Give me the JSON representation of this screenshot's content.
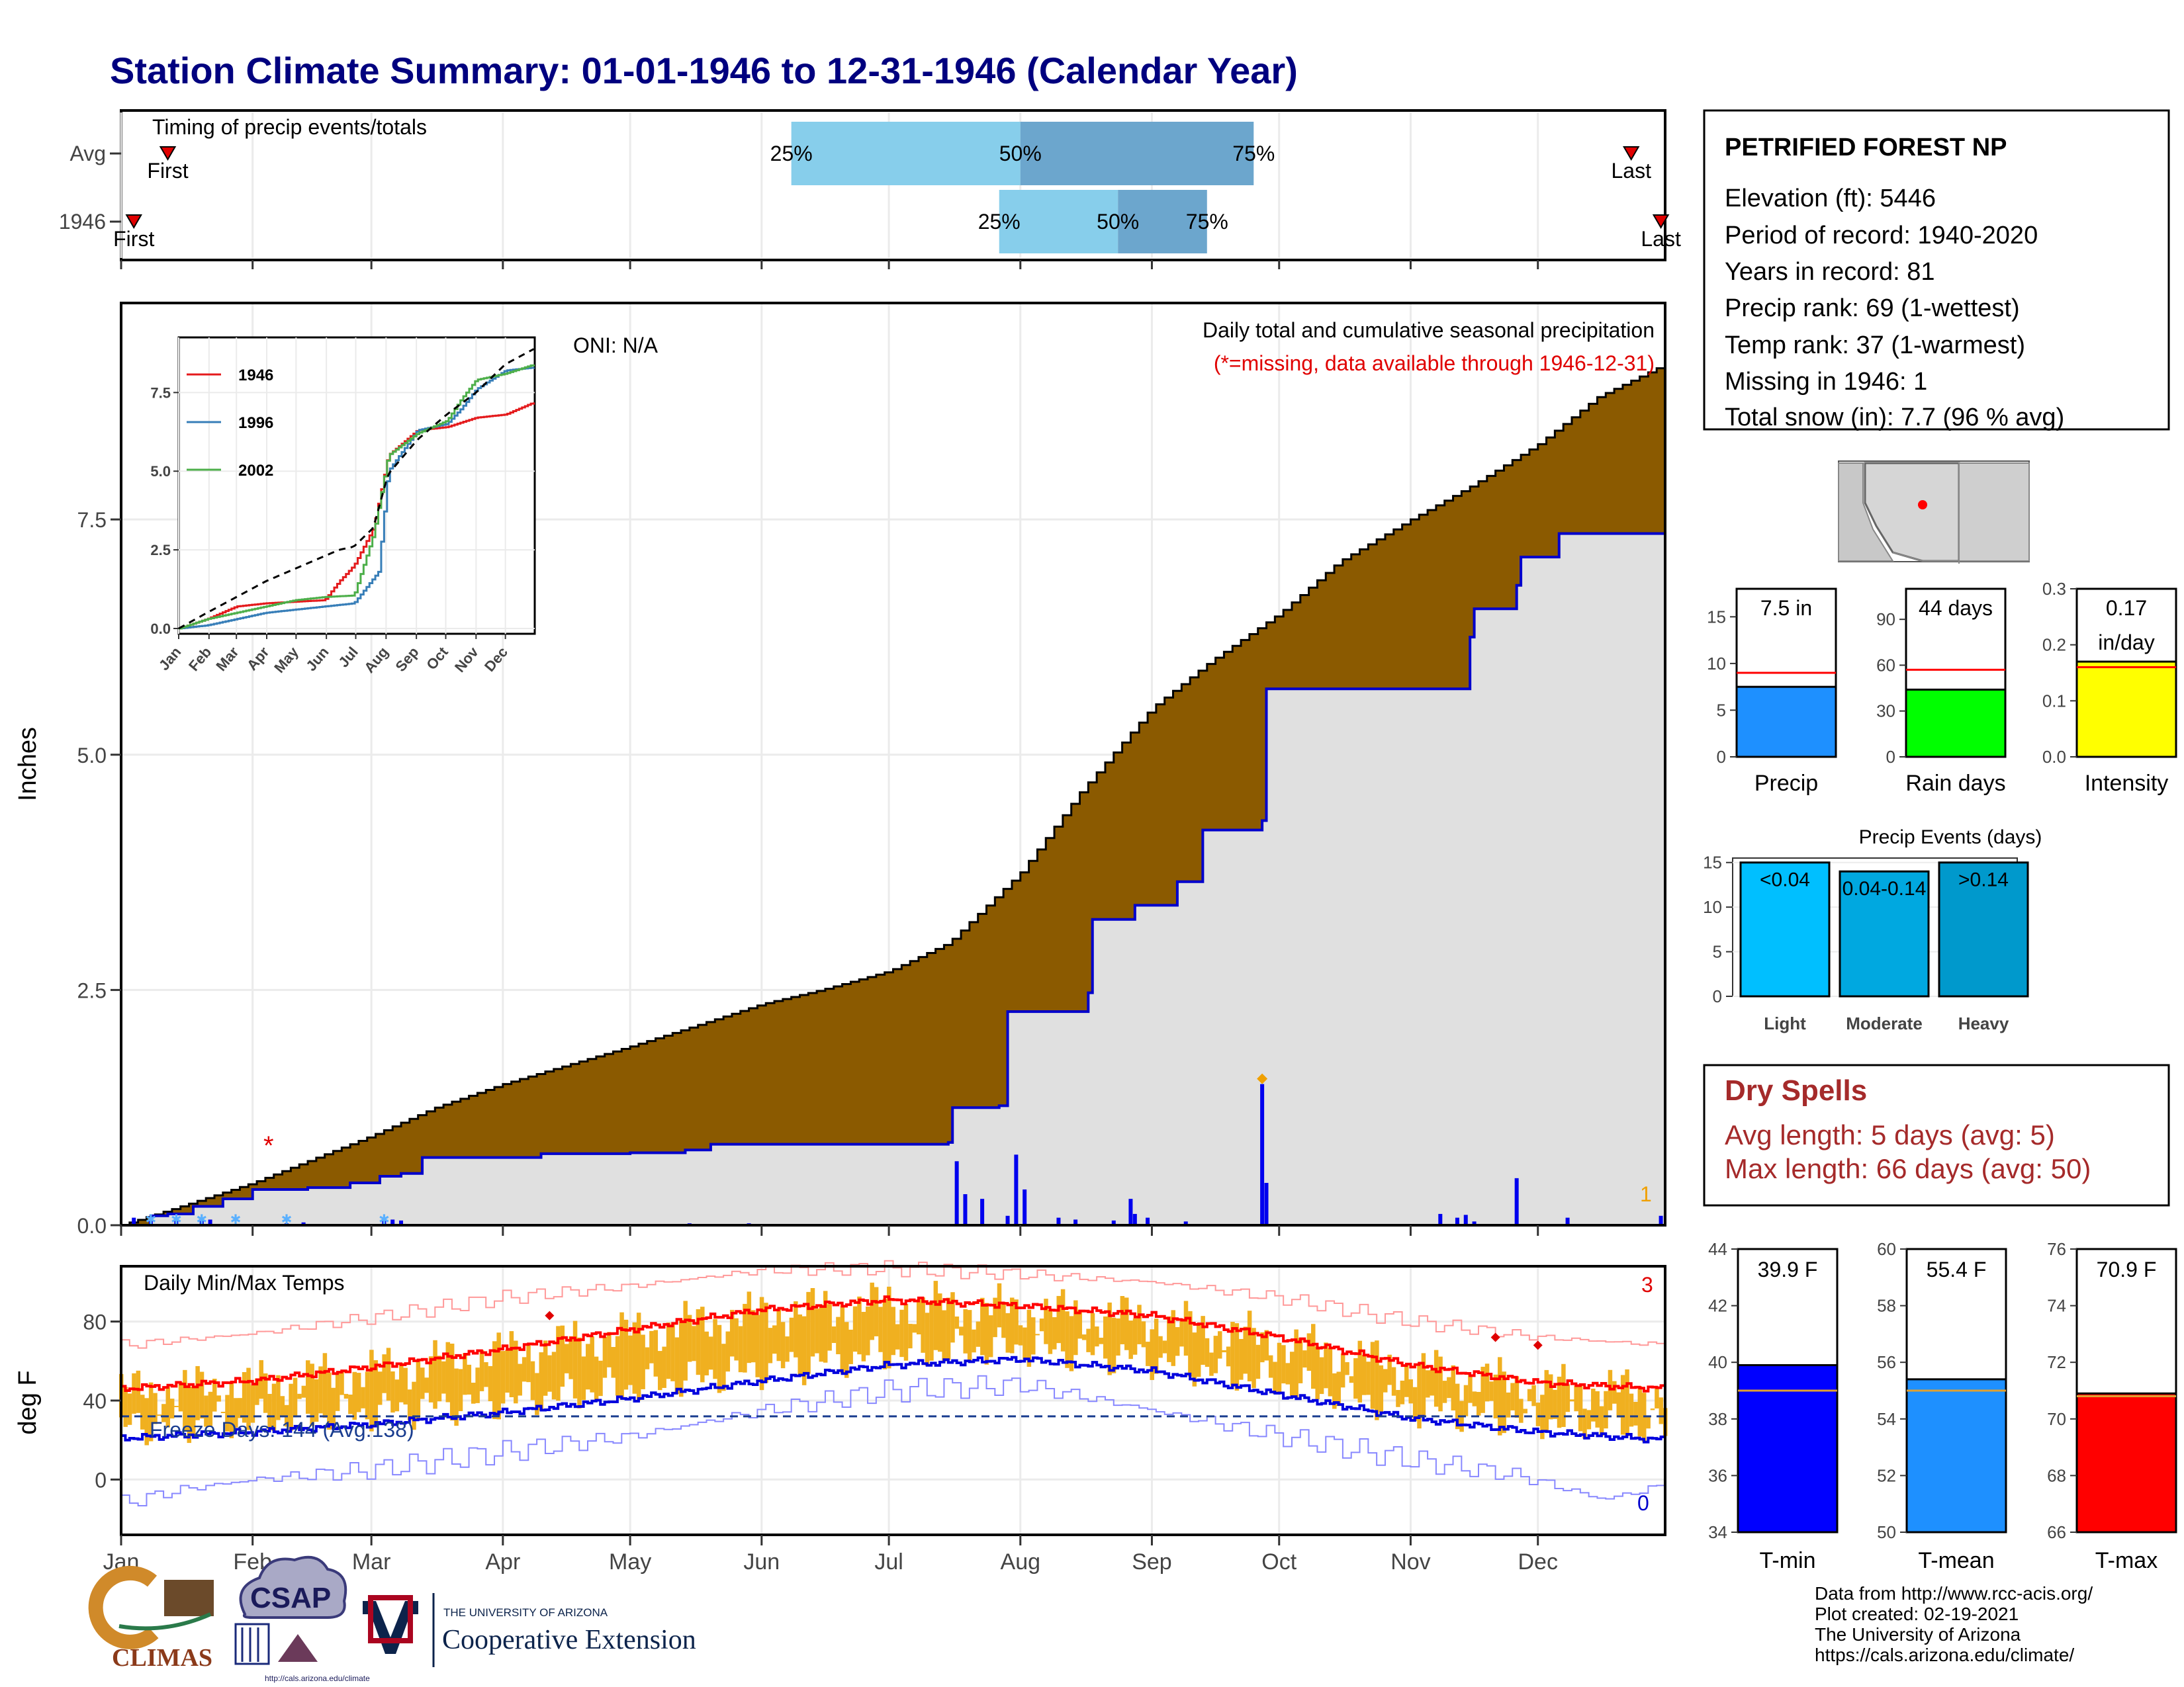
{
  "title": "Station Climate Summary: 01-01-1946 to 12-31-1946 (Calendar Year)",
  "timing_panel": {
    "label": "Timing of precip events/totals",
    "rows": [
      "Avg",
      "1946"
    ],
    "first_label": "First",
    "last_label": "Last",
    "avg": {
      "first_doy": 12,
      "p25_doy": 159,
      "p50_doy": 213,
      "p75_doy": 268,
      "last_doy": 357
    },
    "y1946": {
      "first_doy": 4,
      "p25_doy": 208,
      "p50_doy": 236,
      "p75_doy": 257,
      "last_doy": 364
    },
    "pct_labels": [
      "25%",
      "50%",
      "75%"
    ]
  },
  "station": {
    "name": "PETRIFIED FOREST NP",
    "lines": [
      "Elevation (ft): 5446",
      "Period of record: 1940-2020",
      "Years in record: 81",
      "Precip rank: 69 (1-wettest)",
      "Temp rank: 37 (1-warmest)",
      "Missing in 1946: 1",
      "Total snow (in): 7.7 (96 % avg)"
    ]
  },
  "precip_panel": {
    "ylabel": "Inches",
    "yticks": [
      "0.0",
      "2.5",
      "5.0",
      "7.5"
    ],
    "title_line1": "Daily total and cumulative seasonal precipitation",
    "title_line2": "(*=missing, data available through 1946-12-31)",
    "oni": "ONI: N/A",
    "missing_marker": "*",
    "count_label": "1",
    "colors": {
      "avg_fill": "#8b5a00",
      "year_fill": "#e0e0e0",
      "year_line": "#0000cc",
      "bars": "#0000ee",
      "missing": "#e00000"
    }
  },
  "inset": {
    "yticks": [
      "0.0",
      "2.5",
      "5.0",
      "7.5"
    ],
    "months": [
      "Jan",
      "Feb",
      "Mar",
      "Apr",
      "May",
      "Jun",
      "Jul",
      "Aug",
      "Sep",
      "Oct",
      "Nov",
      "Dec"
    ],
    "legend": [
      {
        "name": "1946",
        "color": "#e41a1c"
      },
      {
        "name": "1996",
        "color": "#377eb8"
      },
      {
        "name": "2002",
        "color": "#4daf4a"
      }
    ]
  },
  "temp_panel": {
    "ylabel": "deg F",
    "title": "Daily Min/Max Temps",
    "yticks": [
      "0",
      "40",
      "80"
    ],
    "freeze_label": "Freeze Days: 144 (Avg:138)",
    "record_high_count": "3",
    "record_low_count": "0",
    "colors": {
      "bars": "#f0b020",
      "avg_max": "#ff0000",
      "avg_min": "#0000dd",
      "rec": "#ff9999",
      "rec_low": "#8888ff"
    }
  },
  "x_months": [
    "Jan",
    "Feb",
    "Mar",
    "Apr",
    "May",
    "Jun",
    "Jul",
    "Aug",
    "Sep",
    "Oct",
    "Nov",
    "Dec"
  ],
  "mini_bars": [
    {
      "label": "Precip",
      "value_label": "7.5 in",
      "value": 7.5,
      "avg": 9.0,
      "yticks": [
        "0",
        "5",
        "10",
        "15"
      ],
      "ymax": 18,
      "color": "#1e90ff"
    },
    {
      "label": "Rain days",
      "value_label": "44 days",
      "value": 44,
      "avg": 57,
      "yticks": [
        "0",
        "30",
        "60",
        "90"
      ],
      "ymax": 110,
      "color": "#00ff00"
    },
    {
      "label": "Intensity",
      "value_label": "0.17\nin/day",
      "value": 0.17,
      "avg": 0.16,
      "yticks": [
        "0.0",
        "0.1",
        "0.2",
        "0.3"
      ],
      "ymax": 0.3,
      "color": "#ffff00"
    }
  ],
  "precip_events": {
    "title": "Precip Events (days)",
    "yticks": [
      "0",
      "5",
      "10",
      "15"
    ],
    "bars": [
      {
        "label": "Light",
        "box_label": "<0.04",
        "value": 15,
        "color": "#00bfff"
      },
      {
        "label": "Moderate",
        "box_label": "0.04-0.14",
        "value": 14,
        "color": "#00a8e0"
      },
      {
        "label": "Heavy",
        "box_label": ">0.14",
        "value": 15,
        "color": "#0099cc"
      }
    ]
  },
  "dry_spells": {
    "title": "Dry Spells",
    "avg_line": "Avg length: 5 days (avg: 5)",
    "max_line": "Max length: 66 days (avg: 50)"
  },
  "temp_bars": [
    {
      "label": "T-min",
      "value_label": "39.9 F",
      "value": 39.9,
      "avg": 39.0,
      "ymin": 34,
      "ymax": 44,
      "yticks": [
        "34",
        "36",
        "38",
        "40",
        "42",
        "44"
      ],
      "color": "#0000ff"
    },
    {
      "label": "T-mean",
      "value_label": "55.4 F",
      "value": 55.4,
      "avg": 55.0,
      "ymin": 50,
      "ymax": 60,
      "yticks": [
        "50",
        "52",
        "54",
        "56",
        "58",
        "60"
      ],
      "color": "#1e90ff"
    },
    {
      "label": "T-max",
      "value_label": "70.9 F",
      "value": 70.9,
      "avg": 70.8,
      "ymin": 66,
      "ymax": 76,
      "yticks": [
        "66",
        "68",
        "70",
        "72",
        "74",
        "76"
      ],
      "color": "#ff0000"
    }
  ],
  "credits": [
    "Data from http://www.rcc-acis.org/",
    "Plot created: 02-19-2021",
    "The University of Arizona",
    "https://cals.arizona.edu/climate/"
  ],
  "logos": {
    "climas": "CLIMAS",
    "csap": "CSAP",
    "csap_url": "http://cals.arizona.edu/climate",
    "ua_small": "THE UNIVERSITY OF ARIZONA",
    "ua_big": "Cooperative Extension"
  },
  "chart_data": {
    "type": "area",
    "title": "Daily total and cumulative seasonal precipitation",
    "ylabel": "Inches",
    "ylim": [
      0,
      9.8
    ],
    "avg_cumulative": {
      "doy": [
        1,
        15,
        32,
        46,
        60,
        75,
        91,
        106,
        121,
        135,
        152,
        166,
        182,
        196,
        213,
        227,
        244,
        258,
        274,
        288,
        305,
        319,
        335,
        349,
        365
      ],
      "inches": [
        0.0,
        0.2,
        0.45,
        0.7,
        0.95,
        1.25,
        1.5,
        1.7,
        1.9,
        2.1,
        2.35,
        2.5,
        2.7,
        3.0,
        3.75,
        4.6,
        5.5,
        6.0,
        6.5,
        7.05,
        7.5,
        7.85,
        8.3,
        8.8,
        9.15
      ]
    },
    "year_cumulative": {
      "doy": [
        1,
        8,
        12,
        18,
        25,
        32,
        45,
        55,
        62,
        67,
        72,
        100,
        121,
        134,
        140,
        196,
        197,
        208,
        210,
        229,
        230,
        240,
        250,
        256,
        270,
        271,
        319,
        320,
        330,
        331,
        340,
        365
      ],
      "inches": [
        0.0,
        0.1,
        0.12,
        0.2,
        0.28,
        0.38,
        0.4,
        0.45,
        0.52,
        0.55,
        0.72,
        0.76,
        0.77,
        0.8,
        0.86,
        0.88,
        1.25,
        1.27,
        2.27,
        2.47,
        3.25,
        3.4,
        3.65,
        4.2,
        4.3,
        5.7,
        6.25,
        6.55,
        6.8,
        7.1,
        7.35,
        7.5
      ]
    },
    "daily_bars": {
      "doy": [
        4,
        8,
        14,
        20,
        22,
        40,
        44,
        63,
        65,
        67,
        135,
        149,
        198,
        200,
        204,
        210,
        212,
        214,
        222,
        226,
        235,
        239,
        240,
        243,
        252,
        270,
        271,
        312,
        316,
        318,
        320,
        330,
        342,
        364
      ],
      "inches": [
        0.08,
        0.06,
        0.05,
        0.07,
        0.06,
        0.02,
        0.03,
        0.08,
        0.06,
        0.05,
        0.02,
        0.02,
        0.68,
        0.33,
        0.28,
        0.1,
        0.75,
        0.38,
        0.08,
        0.06,
        0.05,
        0.28,
        0.12,
        0.08,
        0.04,
        1.5,
        0.45,
        0.12,
        0.08,
        0.11,
        0.04,
        0.5,
        0.08,
        0.1
      ]
    },
    "series": [
      {
        "name": "1946",
        "doy": [
          1,
          30,
          60,
          90,
          120,
          150,
          165,
          180,
          200,
          215,
          245,
          275,
          305,
          335,
          365
        ],
        "inches": [
          0.0,
          0.3,
          0.7,
          0.8,
          0.85,
          0.9,
          1.5,
          2.0,
          3.2,
          5.5,
          6.3,
          6.4,
          6.7,
          6.8,
          7.2
        ]
      },
      {
        "name": "1996",
        "doy": [
          1,
          30,
          60,
          90,
          120,
          150,
          180,
          205,
          215,
          245,
          275,
          290,
          305,
          335,
          365
        ],
        "inches": [
          0.0,
          0.1,
          0.3,
          0.5,
          0.6,
          0.7,
          0.8,
          1.8,
          5.0,
          6.3,
          6.5,
          7.0,
          7.6,
          8.2,
          8.3
        ]
      },
      {
        "name": "2002",
        "doy": [
          1,
          30,
          60,
          90,
          120,
          150,
          180,
          200,
          215,
          245,
          275,
          290,
          305,
          335,
          365
        ],
        "inches": [
          0.0,
          0.3,
          0.5,
          0.7,
          0.9,
          1.0,
          1.05,
          3.0,
          5.5,
          6.2,
          6.6,
          7.3,
          7.9,
          8.1,
          8.4
        ]
      },
      {
        "name": "average",
        "doy": [
          1,
          30,
          60,
          90,
          120,
          150,
          165,
          180,
          200,
          215,
          245,
          275,
          305,
          335,
          365
        ],
        "inches": [
          0.0,
          0.5,
          1.0,
          1.5,
          1.9,
          2.3,
          2.5,
          2.6,
          3.2,
          4.9,
          6.0,
          6.8,
          7.5,
          8.4,
          8.9
        ]
      }
    ],
    "temperature": {
      "ylabel": "deg F",
      "ylim": [
        -28,
        108
      ],
      "avg_max": {
        "doy": [
          1,
          32,
          60,
          91,
          121,
          152,
          182,
          213,
          244,
          274,
          305,
          335,
          365
        ],
        "degF": [
          46,
          50,
          57,
          66,
          76,
          86,
          91,
          88,
          83,
          72,
          58,
          49,
          46
        ]
      },
      "avg_min": {
        "doy": [
          1,
          32,
          60,
          91,
          121,
          152,
          182,
          213,
          244,
          274,
          305,
          335,
          365
        ],
        "degF": [
          21,
          24,
          28,
          34,
          41,
          50,
          58,
          61,
          55,
          43,
          31,
          24,
          20
        ]
      },
      "record_max": {
        "doy": [
          1,
          32,
          60,
          91,
          121,
          152,
          182,
          213,
          244,
          274,
          305,
          335,
          365
        ],
        "degF": [
          68,
          74,
          82,
          92,
          98,
          106,
          107,
          104,
          100,
          92,
          80,
          72,
          68
        ]
      },
      "record_min": {
        "doy": [
          1,
          15,
          32,
          60,
          91,
          121,
          152,
          182,
          213,
          244,
          274,
          305,
          330,
          350,
          365
        ],
        "degF": [
          -12,
          -5,
          0,
          5,
          14,
          22,
          35,
          45,
          48,
          35,
          22,
          10,
          2,
          -10,
          -3
        ]
      },
      "freeze_line": 32,
      "record_highs_doy": [
        102,
        325,
        335
      ],
      "record_high_values": [
        83,
        72,
        68
      ]
    }
  }
}
